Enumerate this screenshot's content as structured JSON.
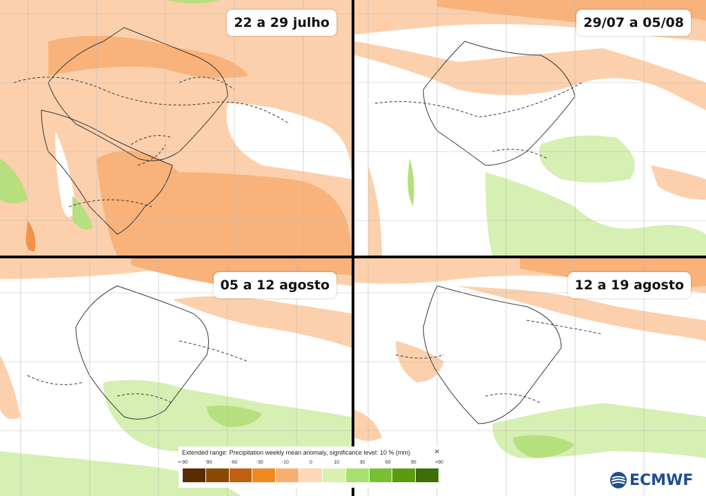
{
  "panels": [
    {
      "label": "22 a 29 julho"
    },
    {
      "label": "29/07 a 05/08"
    },
    {
      "label": "05 a 12 agosto"
    },
    {
      "label": "12 a 19 agosto"
    }
  ],
  "legend": {
    "title": "Extended range: Precipitation weekly mean anomaly, significance level: 10 % (mm)",
    "close_symbol": "✕",
    "ticks": [
      "<-90",
      "-90",
      "-60",
      "-30",
      "-10",
      "0",
      "10",
      "30",
      "60",
      "90",
      ">90"
    ],
    "colors": [
      "#5a2c00",
      "#8c4a00",
      "#c06010",
      "#f08a20",
      "#f8b070",
      "#fcd8b8",
      "#d8f0b0",
      "#a8e070",
      "#78c030",
      "#5c9a10",
      "#3e6e08"
    ]
  },
  "colors": {
    "neg_light": "#fcd0ac",
    "neg_mid": "#f9b27a",
    "neg_strong": "#f39045",
    "pos_light": "#d6efb2",
    "pos_mid": "#b6e07e"
  },
  "logo": {
    "text": "ECMWF",
    "icon": "ecmwf-logo-icon"
  }
}
